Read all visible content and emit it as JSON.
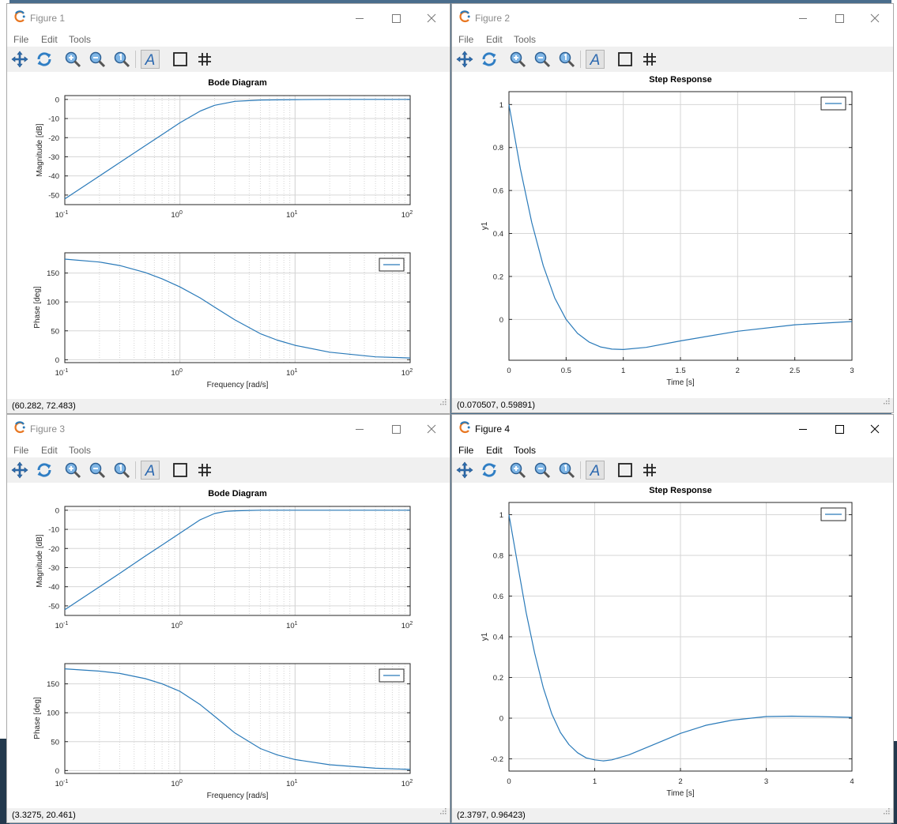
{
  "menu": [
    "File",
    "Edit",
    "Tools"
  ],
  "icons": {
    "app": "octave-logo-icon",
    "tools": [
      "pan-icon",
      "rotate-icon",
      "zoom-in-icon",
      "zoom-out-icon",
      "reset-zoom-icon",
      "text-icon",
      "box-icon",
      "grid-icon"
    ],
    "window": [
      "minimize-icon",
      "maximize-icon",
      "close-icon"
    ]
  },
  "colors": {
    "line": "#2a7ab9",
    "grid": "#d0d0d0",
    "toolbar": "#f0f0f0"
  },
  "windows": [
    {
      "title": "Figure 1",
      "status": "(60.282, 72.483)",
      "chart_data": {
        "type": "line",
        "title": "Bode Diagram",
        "subplots": [
          {
            "ylabel": "Magnitude [dB]",
            "xlabel": "",
            "xscale": "log",
            "xlim": [
              0.1,
              100
            ],
            "ylim": [
              -55,
              2
            ],
            "xticks": [
              "10",
              "10",
              "10",
              "10"
            ],
            "xtick_exponents": [
              "-1",
              "0",
              "1",
              "2"
            ],
            "yticks": [
              "0",
              "-10",
              "-20",
              "-30",
              "-40",
              "-50"
            ],
            "grid": true,
            "series": [
              {
                "x": [
                  0.1,
                  0.15,
                  0.2,
                  0.3,
                  0.5,
                  0.7,
                  1,
                  1.5,
                  2,
                  3,
                  5,
                  10,
                  20,
                  50,
                  100
                ],
                "values": [
                  -52.0,
                  -45.0,
                  -40.0,
                  -33.0,
                  -24.2,
                  -18.4,
                  -12.2,
                  -6.1,
                  -3.1,
                  -1.0,
                  -0.3,
                  -0.1,
                  0,
                  0,
                  0
                ]
              }
            ]
          },
          {
            "ylabel": "Phase [deg]",
            "xlabel": "Frequency [rad/s]",
            "xscale": "log",
            "xlim": [
              0.1,
              100
            ],
            "ylim": [
              -5,
              185
            ],
            "xticks": [
              "10",
              "10",
              "10",
              "10"
            ],
            "xtick_exponents": [
              "-1",
              "0",
              "1",
              "2"
            ],
            "yticks": [
              "150",
              "100",
              "50",
              "0"
            ],
            "grid": true,
            "legend": "top-right",
            "series": [
              {
                "x": [
                  0.1,
                  0.2,
                  0.3,
                  0.5,
                  0.7,
                  1,
                  1.5,
                  2,
                  3,
                  5,
                  7,
                  10,
                  20,
                  50,
                  100
                ],
                "values": [
                  174,
                  169,
                  163,
                  151,
                  140,
                  126,
                  107,
                  91,
                  69,
                  45,
                  34,
                  25,
                  13,
                  5,
                  3
                ]
              }
            ]
          }
        ]
      }
    },
    {
      "title": "Figure 2",
      "status": "(0.070507, 0.59891)",
      "chart_data": {
        "type": "line",
        "title": "Step Response",
        "xlabel": "Time [s]",
        "ylabel": "y1",
        "xlim": [
          0,
          3
        ],
        "ylim": [
          -0.19,
          1.06
        ],
        "xticks": [
          "0",
          "0.5",
          "1",
          "1.5",
          "2",
          "2.5",
          "3"
        ],
        "yticks": [
          "1",
          "0.8",
          "0.6",
          "0.4",
          "0.2",
          "0"
        ],
        "grid": true,
        "legend": "top-right",
        "series": [
          {
            "x": [
              0,
              0.1,
              0.2,
              0.3,
              0.4,
              0.5,
              0.6,
              0.7,
              0.8,
              0.9,
              1.0,
              1.2,
              1.5,
              2.0,
              2.5,
              3.0
            ],
            "values": [
              1.0,
              0.7,
              0.45,
              0.25,
              0.1,
              0.0,
              -0.065,
              -0.105,
              -0.128,
              -0.138,
              -0.14,
              -0.13,
              -0.1,
              -0.055,
              -0.025,
              -0.01
            ]
          }
        ]
      }
    },
    {
      "title": "Figure 3",
      "status": "(3.3275, 20.461)",
      "chart_data": {
        "type": "line",
        "title": "Bode Diagram",
        "subplots": [
          {
            "ylabel": "Magnitude [dB]",
            "xlabel": "",
            "xscale": "log",
            "xlim": [
              0.1,
              100
            ],
            "ylim": [
              -55,
              2
            ],
            "xticks": [
              "10",
              "10",
              "10",
              "10"
            ],
            "xtick_exponents": [
              "-1",
              "0",
              "1",
              "2"
            ],
            "yticks": [
              "0",
              "-10",
              "-20",
              "-30",
              "-40",
              "-50"
            ],
            "grid": true,
            "series": [
              {
                "x": [
                  0.1,
                  0.15,
                  0.2,
                  0.3,
                  0.5,
                  0.7,
                  1,
                  1.5,
                  2,
                  2.5,
                  3,
                  4,
                  5,
                  10,
                  100
                ],
                "values": [
                  -52.0,
                  -45.0,
                  -40.0,
                  -33.0,
                  -24.0,
                  -18.2,
                  -12.0,
                  -5.0,
                  -1.7,
                  -0.6,
                  -0.3,
                  -0.1,
                  0,
                  0,
                  0
                ]
              }
            ]
          },
          {
            "ylabel": "Phase [deg]",
            "xlabel": "Frequency [rad/s]",
            "xscale": "log",
            "xlim": [
              0.1,
              100
            ],
            "ylim": [
              -5,
              185
            ],
            "xticks": [
              "10",
              "10",
              "10",
              "10"
            ],
            "xtick_exponents": [
              "-1",
              "0",
              "1",
              "2"
            ],
            "yticks": [
              "150",
              "100",
              "50",
              "0"
            ],
            "grid": true,
            "legend": "top-right",
            "series": [
              {
                "x": [
                  0.1,
                  0.2,
                  0.3,
                  0.5,
                  0.7,
                  1,
                  1.5,
                  2,
                  3,
                  5,
                  7,
                  10,
                  20,
                  50,
                  100
                ],
                "values": [
                  176,
                  172,
                  168,
                  159,
                  150,
                  137,
                  114,
                  94,
                  65,
                  38,
                  27,
                  19,
                  10,
                  4,
                  2
                ]
              }
            ]
          }
        ]
      }
    },
    {
      "title": "Figure 4",
      "status": "(2.3797, 0.96423)",
      "chart_data": {
        "type": "line",
        "title": "Step Response",
        "xlabel": "Time [s]",
        "ylabel": "y1",
        "xlim": [
          0,
          4
        ],
        "ylim": [
          -0.26,
          1.06
        ],
        "xticks": [
          "0",
          "1",
          "2",
          "3",
          "4"
        ],
        "yticks": [
          "1",
          "0.8",
          "0.6",
          "0.4",
          "0.2",
          "0",
          "-0.2"
        ],
        "grid": true,
        "legend": "top-right",
        "series": [
          {
            "x": [
              0,
              0.1,
              0.2,
              0.3,
              0.4,
              0.5,
              0.6,
              0.7,
              0.8,
              0.9,
              1.0,
              1.1,
              1.2,
              1.4,
              1.6,
              1.8,
              2.0,
              2.3,
              2.6,
              3.0,
              3.3,
              3.6,
              4.0
            ],
            "values": [
              1.0,
              0.76,
              0.52,
              0.32,
              0.15,
              0.02,
              -0.07,
              -0.13,
              -0.17,
              -0.195,
              -0.205,
              -0.21,
              -0.205,
              -0.18,
              -0.145,
              -0.11,
              -0.075,
              -0.035,
              -0.01,
              0.008,
              0.01,
              0.008,
              0.004
            ]
          }
        ]
      }
    }
  ]
}
